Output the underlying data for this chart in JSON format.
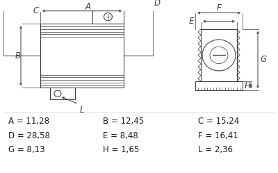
{
  "dim_rows": [
    [
      "A = 11,28",
      "B = 12,45",
      "C = 15,24"
    ],
    [
      "D = 28,58",
      "E = 8,48",
      "F = 16,41"
    ],
    [
      "G = 8,13",
      "H = 1,65",
      "L = 2,36"
    ]
  ],
  "line_color": "#3a3a3a",
  "bg_color": "#ffffff",
  "text_color": "#1a1a1a",
  "dim_fontsize": 8.5,
  "label_fontsize": 8.5
}
